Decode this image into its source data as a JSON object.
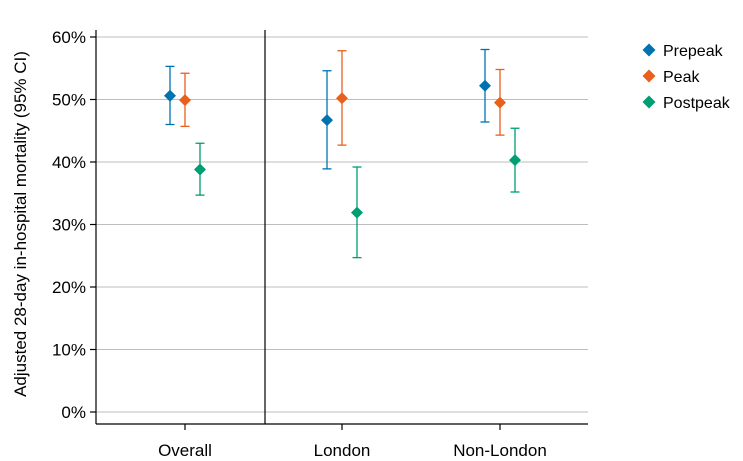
{
  "chart_data": {
    "type": "scatter",
    "subtype": "point-with-error-bars",
    "title": "",
    "xlabel": "",
    "ylabel": "Adjusted 28-day in-hospital mortality (95% CI)",
    "ylim": [
      0,
      60
    ],
    "y_ticks": [
      0,
      10,
      20,
      30,
      40,
      50,
      60
    ],
    "y_tick_labels": [
      "0%",
      "10%",
      "20%",
      "30%",
      "40%",
      "50%",
      "60%"
    ],
    "categories": [
      "Overall",
      "London",
      "Non-London"
    ],
    "grid": "horizontal",
    "separator_after_category": "Overall",
    "legend_position": "right",
    "series": [
      {
        "name": "Prepeak",
        "color": "#0072b2",
        "values": [
          50.6,
          46.7,
          52.2
        ],
        "ci_low": [
          46.0,
          38.9,
          46.4
        ],
        "ci_high": [
          55.3,
          54.6,
          58.0
        ]
      },
      {
        "name": "Peak",
        "color": "#e8601c",
        "values": [
          49.9,
          50.2,
          49.5
        ],
        "ci_low": [
          45.7,
          42.7,
          44.3
        ],
        "ci_high": [
          54.2,
          57.8,
          54.8
        ]
      },
      {
        "name": "Postpeak",
        "color": "#009e73",
        "values": [
          38.8,
          31.9,
          40.3
        ],
        "ci_low": [
          34.7,
          24.7,
          35.2
        ],
        "ci_high": [
          43.0,
          39.2,
          45.4
        ]
      }
    ]
  }
}
